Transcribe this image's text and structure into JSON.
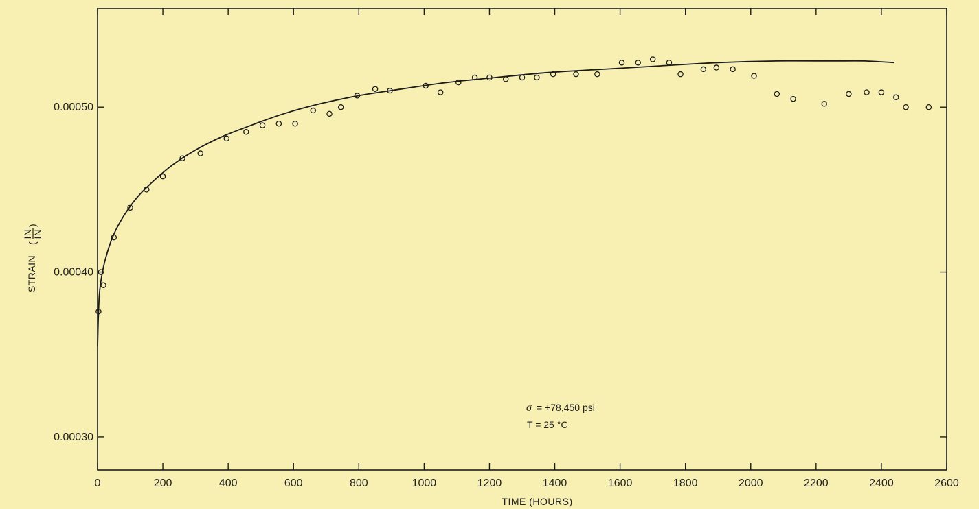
{
  "chart_data": {
    "type": "scatter",
    "title": "",
    "xlabel": "TIME (HOURS)",
    "ylabel": "STRAIN",
    "ylabel_fraction": {
      "numerator": "IN",
      "denominator": "IN"
    },
    "xlim": [
      0,
      2600
    ],
    "ylim": [
      0.00028,
      0.00056
    ],
    "x_ticks": [
      0,
      200,
      400,
      600,
      800,
      1000,
      1200,
      1400,
      1600,
      1800,
      2000,
      2200,
      2400,
      2600
    ],
    "x_tick_labels": [
      "0",
      "200",
      "400",
      "600",
      "800",
      "1000",
      "1200",
      "1400",
      "1600",
      "1800",
      "2000",
      "2200",
      "2400",
      "2600"
    ],
    "y_ticks": [
      0.0003,
      0.0004,
      0.0005
    ],
    "y_tick_labels": [
      "0.00030",
      "0.00040",
      "0.00050"
    ],
    "grid": false,
    "annotation": {
      "sigma_symbol": "σ",
      "sigma_text": "= +78,450 psi",
      "temp_text": "T = 25 °C"
    },
    "series": [
      {
        "kind": "points",
        "x": [
          3,
          10,
          18,
          50,
          100,
          150,
          200,
          260,
          315,
          395,
          455,
          505,
          555,
          605,
          660,
          710,
          745,
          795,
          850,
          895,
          1005,
          1050,
          1105,
          1155,
          1200,
          1250,
          1300,
          1345,
          1395,
          1465,
          1530,
          1605,
          1655,
          1700,
          1750,
          1785,
          1855,
          1895,
          1945,
          2010,
          2080,
          2130,
          2225,
          2300,
          2355,
          2400,
          2445,
          2475,
          2545
        ],
        "y": [
          0.000376,
          0.0004,
          0.000392,
          0.000421,
          0.000439,
          0.00045,
          0.000458,
          0.000469,
          0.000472,
          0.000481,
          0.000485,
          0.000489,
          0.00049,
          0.00049,
          0.000498,
          0.000496,
          0.0005,
          0.000507,
          0.000511,
          0.00051,
          0.000513,
          0.000509,
          0.000515,
          0.000518,
          0.000518,
          0.000517,
          0.000518,
          0.000518,
          0.00052,
          0.00052,
          0.00052,
          0.000527,
          0.000527,
          0.000529,
          0.000527,
          0.00052,
          0.000523,
          0.000524,
          0.000523,
          0.000519,
          0.000508,
          0.000505,
          0.000502,
          0.000508,
          0.000509,
          0.000509,
          0.000506,
          0.0005,
          0.0005
        ]
      },
      {
        "kind": "curve",
        "x": [
          0,
          5,
          15,
          30,
          50,
          80,
          120,
          170,
          230,
          300,
          380,
          470,
          570,
          680,
          800,
          930,
          1070,
          1220,
          1380,
          1550,
          1720,
          1900,
          2080,
          2250,
          2350,
          2440
        ],
        "y": [
          0.000355,
          0.000385,
          0.0004,
          0.000412,
          0.000423,
          0.000434,
          0.000445,
          0.000455,
          0.000465,
          0.000474,
          0.000482,
          0.000489,
          0.000496,
          0.000502,
          0.000507,
          0.000511,
          0.000515,
          0.000518,
          0.000521,
          0.000523,
          0.000525,
          0.000527,
          0.000528,
          0.000528,
          0.000528,
          0.000527
        ]
      }
    ]
  }
}
